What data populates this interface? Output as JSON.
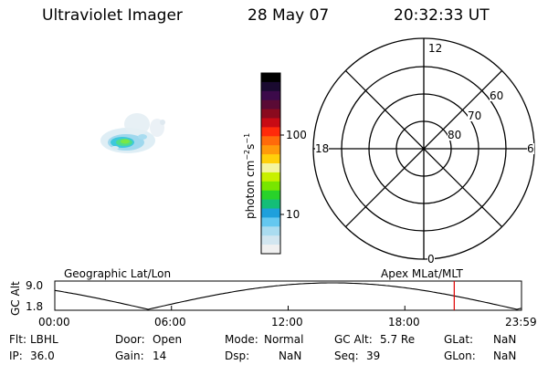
{
  "header": {
    "instrument": "Ultraviolet Imager",
    "date": "28 May 07",
    "time": "20:32:33 UT"
  },
  "colorbar": {
    "label": "photon cm-2s-1",
    "label_base": "photon cm",
    "label_sup1": "−2",
    "label_mid": "s",
    "label_sup2": "−1",
    "ticks": [
      "100",
      "10"
    ],
    "colors": [
      "#000000",
      "#1a0a30",
      "#3c0a4a",
      "#5a0a35",
      "#8a0a1e",
      "#c80a14",
      "#ff2a0a",
      "#ff6a0a",
      "#ff9a0a",
      "#ffd00a",
      "#f4f4a0",
      "#c8f000",
      "#78e600",
      "#28d22a",
      "#14be78",
      "#1ea0dc",
      "#64c8f0",
      "#aadcf0",
      "#d2e6f0",
      "#f0f0f0"
    ]
  },
  "polar": {
    "mlt_labels": {
      "top": "12",
      "left": "18",
      "right": "6",
      "bottom": "0"
    },
    "lat_labels": [
      "60",
      "70",
      "80"
    ]
  },
  "orbit": {
    "title_left": "Geographic Lat/Lon",
    "title_right": "Apex MLat/MLT",
    "ylabel": "GC Alt",
    "y_ticks": [
      "9.0",
      "1.8"
    ],
    "x_ticks": [
      "00:00",
      "06:00",
      "12:00",
      "18:00",
      "23:59"
    ],
    "curve_color": "#000000",
    "marker_color": "#e00000"
  },
  "info": {
    "flt_label": "Flt:",
    "flt_value": "LBHL",
    "ip_label": "IP:",
    "ip_value": "36.0",
    "door_label": "Door:",
    "door_value": "Open",
    "gain_label": "Gain:",
    "gain_value": "14",
    "mode_label": "Mode:",
    "mode_value": "Normal",
    "dsp_label": "Dsp:",
    "dsp_value": "NaN",
    "gcalt_label": "GC Alt:",
    "gcalt_value": "5.7 Re",
    "seq_label": "Seq:",
    "seq_value": "39",
    "glat_label": "GLat:",
    "glat_value": "NaN",
    "glon_label": "GLon:",
    "glon_value": "NaN"
  }
}
